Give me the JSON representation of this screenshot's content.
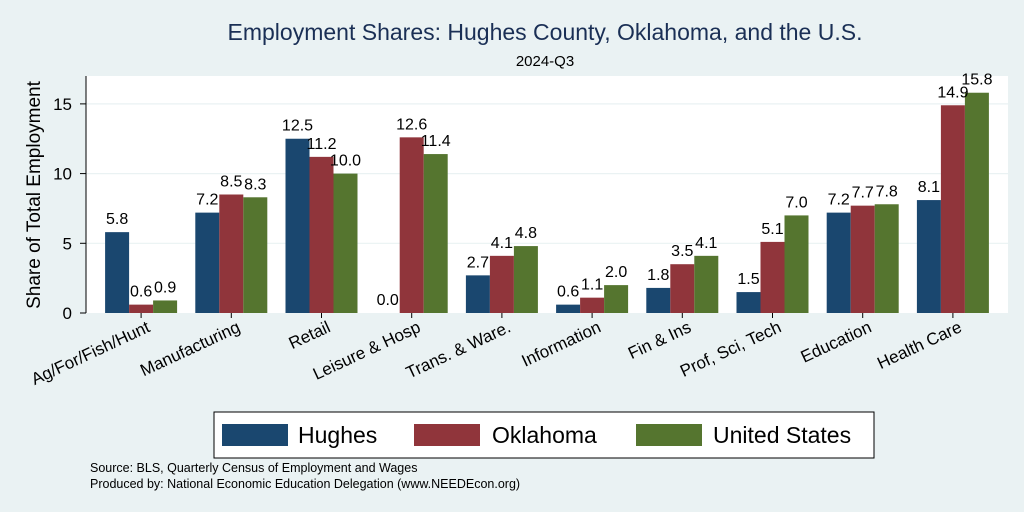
{
  "chart_data": {
    "type": "bar",
    "title": "Employment Shares: Hughes County, Oklahoma, and the U.S.",
    "subtitle": "2024-Q3",
    "ylabel": "Share of Total Employment",
    "xlabel": "",
    "ylim": [
      0,
      17
    ],
    "yticks": [
      0,
      5,
      10,
      15
    ],
    "categories": [
      "Ag/For/Fish/Hunt",
      "Manufacturing",
      "Retail",
      "Leisure & Hosp",
      "Trans. & Ware.",
      "Information",
      "Fin & Ins",
      "Prof, Sci, Tech",
      "Education",
      "Health Care"
    ],
    "series": [
      {
        "name": "Hughes",
        "color": "#1a476f",
        "values": [
          5.8,
          7.2,
          12.5,
          0.0,
          2.7,
          0.6,
          1.8,
          1.5,
          7.2,
          8.1
        ],
        "labels": [
          "5.8",
          "7.2",
          "12.5",
          "0.0",
          "2.7",
          "0.6",
          "1.8",
          "1.5",
          "7.2",
          "8.1"
        ]
      },
      {
        "name": "Oklahoma",
        "color": "#90353b",
        "values": [
          0.6,
          8.5,
          11.2,
          12.6,
          4.1,
          1.1,
          3.5,
          5.1,
          7.7,
          14.9
        ],
        "labels": [
          "0.6",
          "8.5",
          "11.2",
          "12.6",
          "4.1",
          "1.1",
          "3.5",
          "5.1",
          "7.7",
          "14.9"
        ]
      },
      {
        "name": "United States",
        "color": "#55752f",
        "values": [
          0.9,
          8.3,
          10.0,
          11.4,
          4.8,
          2.0,
          4.1,
          7.0,
          7.8,
          15.8
        ],
        "labels": [
          "0.9",
          "8.3",
          "10.0",
          "11.4",
          "4.8",
          "2.0",
          "4.1",
          "7.0",
          "7.8",
          "15.8"
        ]
      }
    ],
    "grid": true,
    "legend_position": "bottom"
  },
  "source_lines": [
    "Source: BLS, Quarterly Census of Employment and Wages",
    "Produced by: National Economic Education Delegation (www.NEEDEcon.org)"
  ]
}
